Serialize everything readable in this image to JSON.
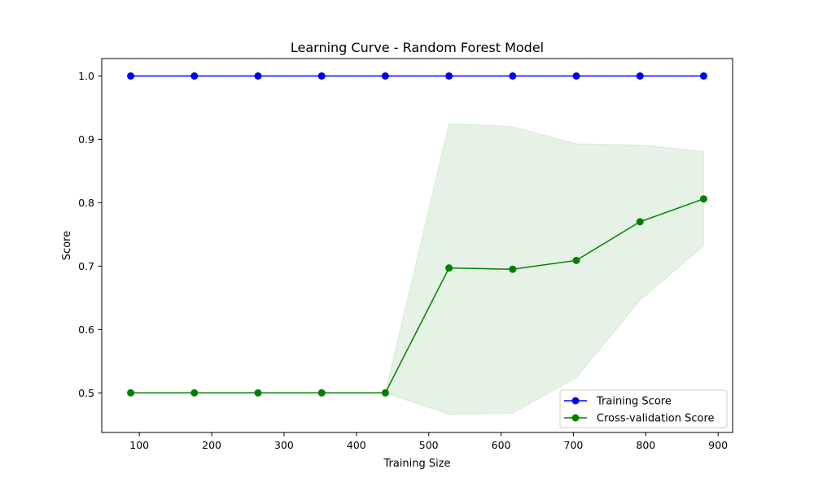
{
  "chart_data": {
    "type": "line",
    "title": "Learning Curve - Random Forest Model",
    "xlabel": "Training Size",
    "ylabel": "Score",
    "xlim": [
      48,
      920
    ],
    "ylim": [
      0.4375,
      1.0275
    ],
    "x_ticks": [
      100,
      200,
      300,
      400,
      500,
      600,
      700,
      800,
      900
    ],
    "x_tick_labels": [
      "100",
      "200",
      "300",
      "400",
      "500",
      "600",
      "700",
      "800",
      "900"
    ],
    "y_ticks": [
      0.5,
      0.6,
      0.7,
      0.8,
      0.9,
      1.0
    ],
    "y_tick_labels": [
      "0.5",
      "0.6",
      "0.7",
      "0.8",
      "0.9",
      "1.0"
    ],
    "grid": false,
    "legend_position": "lower-right",
    "x": [
      88,
      176,
      264,
      352,
      440,
      528,
      616,
      704,
      792,
      880
    ],
    "series": [
      {
        "name": "Training Score",
        "color": "#0000ff",
        "marker": "circle",
        "values": [
          1.0,
          1.0,
          1.0,
          1.0,
          1.0,
          1.0,
          1.0,
          1.0,
          1.0,
          1.0
        ]
      },
      {
        "name": "Cross-validation Score",
        "color": "#008000",
        "marker": "circle",
        "values": [
          0.5,
          0.5,
          0.5,
          0.5,
          0.5,
          0.697,
          0.695,
          0.709,
          0.77,
          0.806
        ],
        "band": {
          "upper": [
            0.5,
            0.5,
            0.5,
            0.5,
            0.5,
            0.925,
            0.92,
            0.893,
            0.891,
            0.881
          ],
          "lower": [
            0.5,
            0.5,
            0.5,
            0.5,
            0.5,
            0.466,
            0.468,
            0.524,
            0.646,
            0.732
          ],
          "color": "#008000",
          "opacity": 0.1
        }
      }
    ]
  }
}
